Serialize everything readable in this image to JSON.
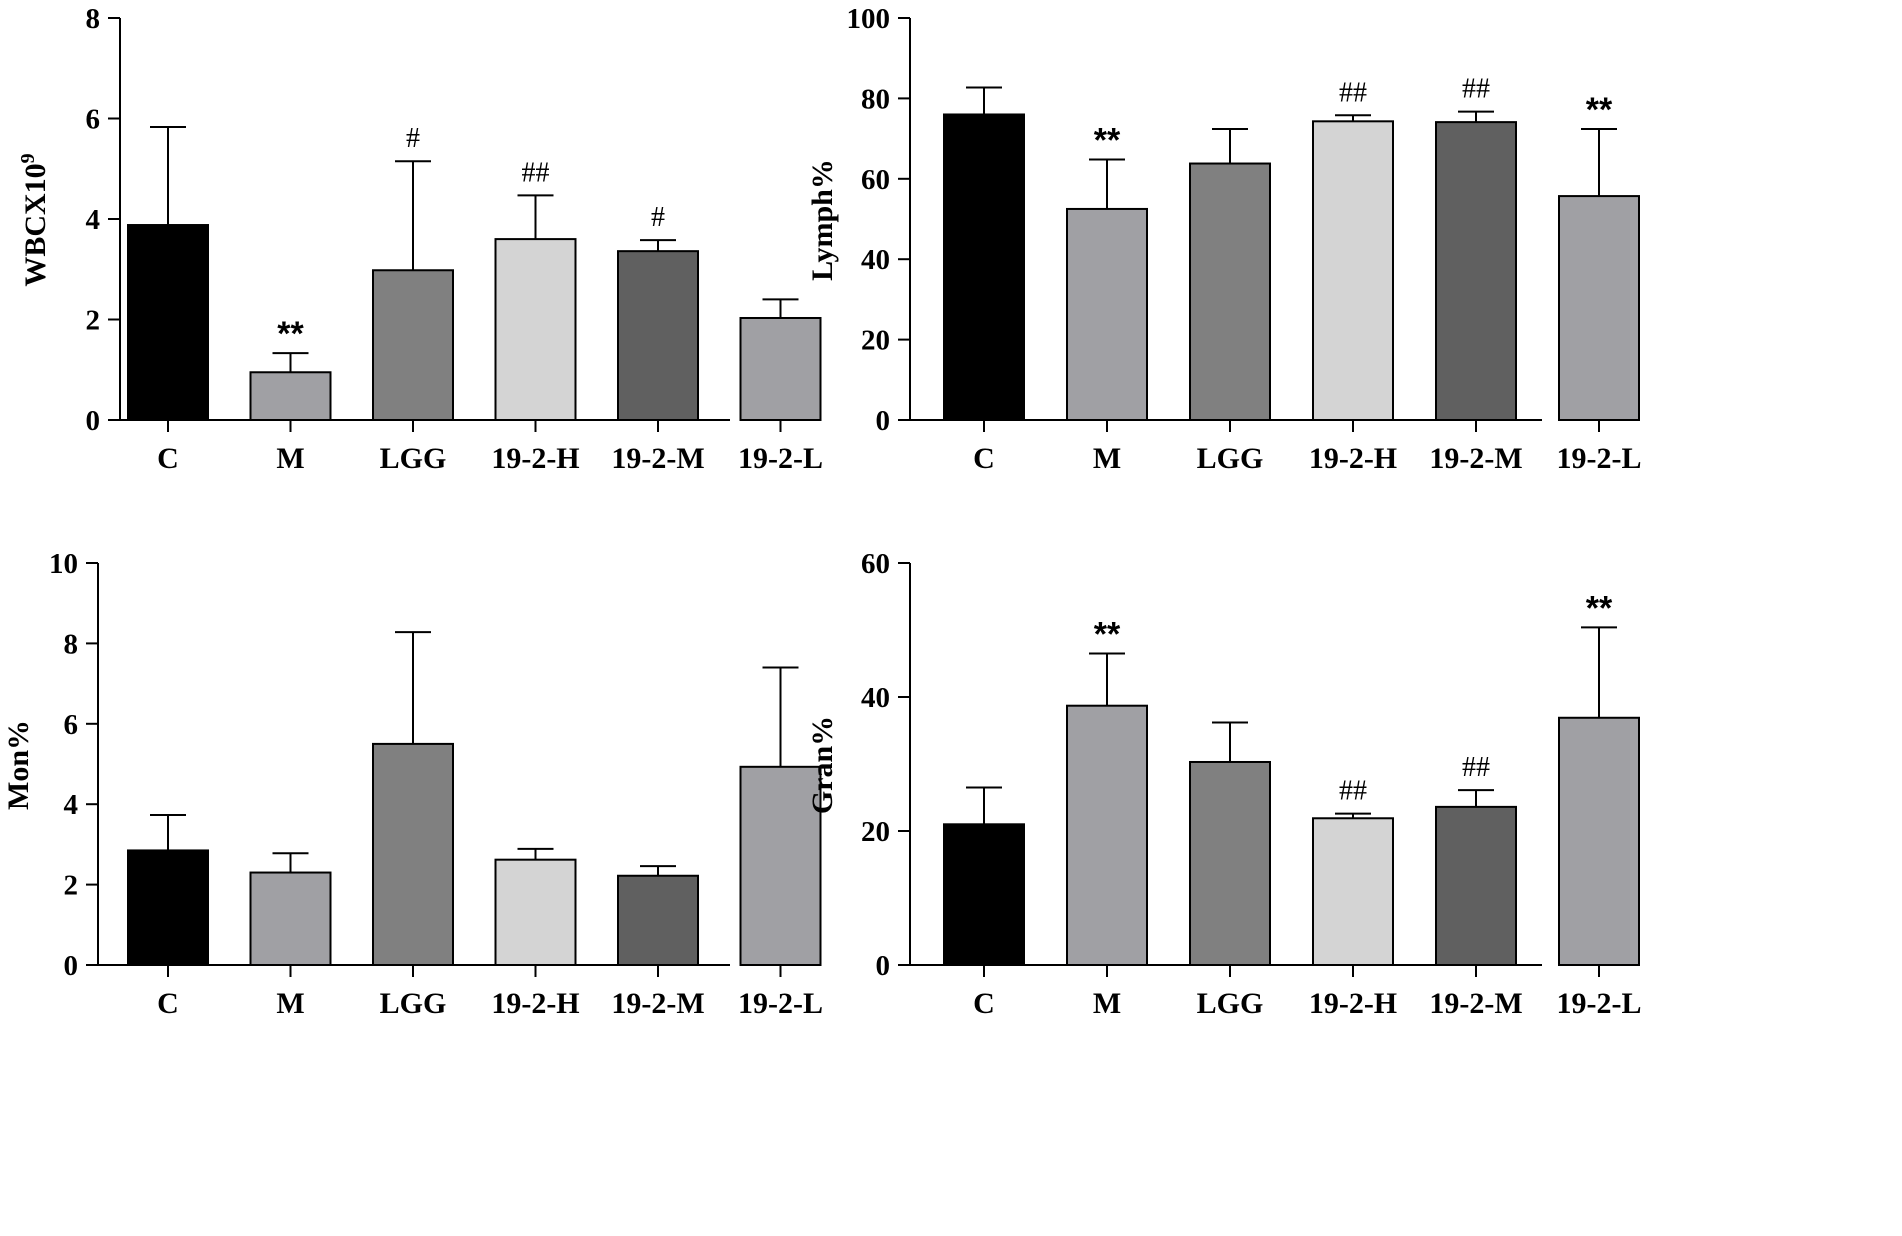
{
  "colors": [
    "#000000",
    "#a0a0a4",
    "#808080",
    "#d4d4d4",
    "#606060",
    "#a0a0a4"
  ],
  "chart_data": [
    {
      "type": "bar",
      "categories": [
        "C",
        "M",
        "LGG",
        "19-2-H",
        "19-2-M",
        "19-2-L"
      ],
      "ylabel": "WBCX10",
      "ylabel_sup": "9",
      "ylim": [
        0,
        8
      ],
      "yticks": [
        0,
        2,
        4,
        6,
        8
      ],
      "values": [
        3.88,
        0.95,
        2.98,
        3.6,
        3.36,
        2.03
      ],
      "errors": [
        1.95,
        0.38,
        2.17,
        0.87,
        0.22,
        0.37
      ],
      "annotations": [
        "",
        "**",
        "#",
        "##",
        "#",
        ""
      ]
    },
    {
      "type": "bar",
      "categories": [
        "C",
        "M",
        "LGG",
        "19-2-H",
        "19-2-M",
        "19-2-L"
      ],
      "ylabel": "Lymph%",
      "ylabel_sup": "",
      "ylim": [
        0,
        100
      ],
      "yticks": [
        0,
        20,
        40,
        60,
        80,
        100
      ],
      "values": [
        76,
        52.5,
        63.8,
        74.3,
        74.1,
        55.7
      ],
      "errors": [
        6.7,
        12.3,
        8.6,
        1.5,
        2.6,
        16.7
      ],
      "annotations": [
        "",
        "**",
        "",
        "##",
        "##",
        "**"
      ]
    },
    {
      "type": "bar",
      "categories": [
        "C",
        "M",
        "LGG",
        "19-2-H",
        "19-2-M",
        "19-2-L"
      ],
      "ylabel": "Mon%",
      "ylabel_sup": "",
      "ylim": [
        0,
        10
      ],
      "yticks": [
        0,
        2,
        4,
        6,
        8,
        10
      ],
      "values": [
        2.85,
        2.3,
        5.5,
        2.62,
        2.22,
        4.93
      ],
      "errors": [
        0.88,
        0.48,
        2.78,
        0.27,
        0.24,
        2.47
      ],
      "annotations": [
        "",
        "",
        "",
        "",
        "",
        ""
      ]
    },
    {
      "type": "bar",
      "categories": [
        "C",
        "M",
        "LGG",
        "19-2-H",
        "19-2-M",
        "19-2-L"
      ],
      "ylabel": "Gran%",
      "ylabel_sup": "",
      "ylim": [
        0,
        60
      ],
      "yticks": [
        0,
        20,
        40,
        60
      ],
      "values": [
        21,
        38.7,
        30.3,
        21.9,
        23.6,
        36.9
      ],
      "errors": [
        5.5,
        7.8,
        5.9,
        0.7,
        2.5,
        13.5
      ],
      "annotations": [
        "",
        "**",
        "",
        "##",
        "##",
        "**"
      ]
    }
  ]
}
